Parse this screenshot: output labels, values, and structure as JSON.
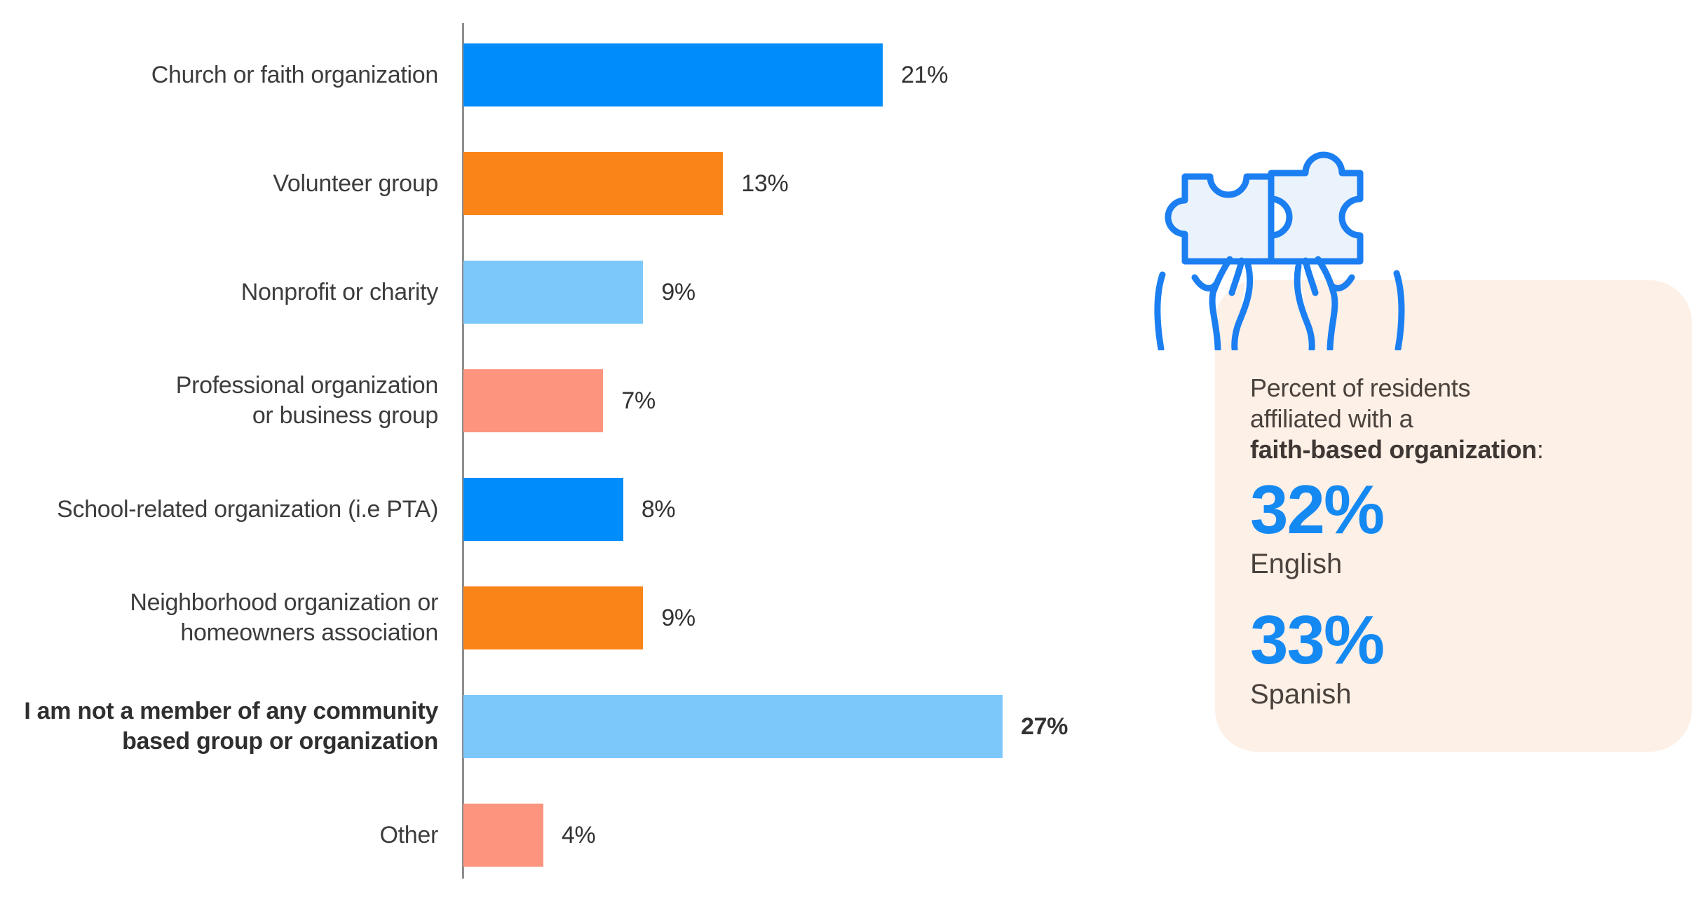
{
  "chart_data": {
    "type": "bar",
    "orientation": "horizontal",
    "unit": "%",
    "xlim": [
      0,
      28
    ],
    "grid": false,
    "legend": "none",
    "categories": [
      "Church or faith organization",
      "Volunteer group",
      "Nonprofit or charity",
      "Professional organization\nor business group",
      "School-related organization (i.e PTA)",
      "Neighborhood organization or\nhomeowners association",
      "I am not a member of any community\nbased group or organization",
      "Other"
    ],
    "values": [
      21,
      13,
      9,
      7,
      8,
      9,
      27,
      4
    ],
    "value_labels": [
      "21%",
      "13%",
      "9%",
      "7%",
      "8%",
      "9%",
      "27%",
      "4%"
    ],
    "bar_colors": [
      "#008CFB",
      "#FB8418",
      "#7CC8FB",
      "#FD947E",
      "#008CFB",
      "#FB8418",
      "#7CC8FB",
      "#FD947E"
    ],
    "bold_rows": [
      6
    ]
  },
  "infocard": {
    "lead_lines": [
      "Percent of residents",
      "affiliated with a"
    ],
    "lead_bold": "faith-based organization",
    "lead_suffix": ":",
    "stats": [
      {
        "value": "32%",
        "label": "English"
      },
      {
        "value": "33%",
        "label": "Spanish"
      }
    ]
  },
  "icon": {
    "name": "hands-holding-puzzle-icon"
  },
  "colors": {
    "axis": "#8E8E8E",
    "label_text": "#3D3D3D",
    "bar_blue": "#008CFB",
    "bar_orange": "#FB8418",
    "bar_light_blue": "#7CC8FB",
    "bar_salmon": "#FD947E",
    "stat_value_blue": "#1589F2",
    "card_background": "#FDF0E7",
    "card_text": "#4A423D",
    "icon_stroke": "#1B7FF2",
    "icon_fill": "#EAF2FC"
  }
}
